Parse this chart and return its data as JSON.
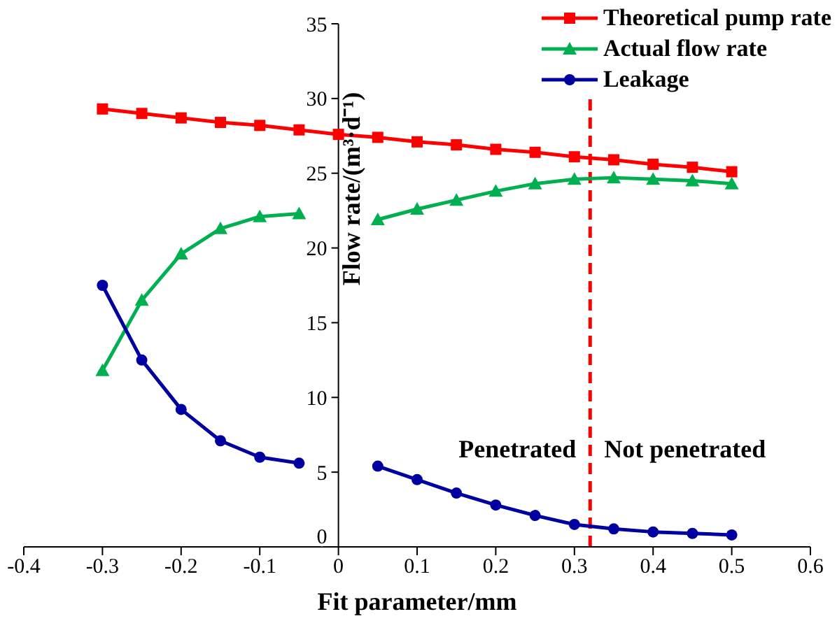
{
  "chart_data": {
    "type": "line",
    "xlabel": "Fit parameter/mm",
    "ylabel": "Flow rate/(m³·d⁻¹)",
    "x": [
      -0.3,
      -0.25,
      -0.2,
      -0.15,
      -0.1,
      -0.05,
      0,
      0.05,
      0.1,
      0.15,
      0.2,
      0.25,
      0.3,
      0.35,
      0.4,
      0.45,
      0.5
    ],
    "series": [
      {
        "name": "Theoretical pump rate",
        "color": "#ff0000",
        "marker": "square",
        "values": [
          29.3,
          29.0,
          28.7,
          28.4,
          28.2,
          27.9,
          27.6,
          27.4,
          27.1,
          26.9,
          26.6,
          26.4,
          26.1,
          25.9,
          25.6,
          25.4,
          25.1
        ]
      },
      {
        "name": "Actual flow rate",
        "color": "#00b050",
        "marker": "triangle",
        "values": [
          11.8,
          16.5,
          19.6,
          21.3,
          22.1,
          22.3,
          null,
          21.9,
          22.6,
          23.2,
          23.8,
          24.3,
          24.6,
          24.7,
          24.6,
          24.5,
          24.3
        ]
      },
      {
        "name": "Leakage",
        "color": "#0000a0",
        "marker": "circle",
        "values": [
          17.5,
          12.5,
          9.2,
          7.1,
          6.0,
          5.6,
          null,
          5.4,
          4.5,
          3.6,
          2.8,
          2.1,
          1.5,
          1.2,
          1.0,
          0.9,
          0.8
        ]
      }
    ],
    "xlim": [
      -0.4,
      0.6
    ],
    "xticks": [
      -0.4,
      -0.3,
      -0.2,
      -0.1,
      0,
      0.1,
      0.2,
      0.3,
      0.4,
      0.5,
      0.6
    ],
    "ylim": [
      0,
      35
    ],
    "yticks": [
      0,
      5,
      10,
      15,
      20,
      25,
      30,
      35
    ],
    "ref_lines": [
      {
        "axis": "x",
        "value": 0.32,
        "color": "#ff0000",
        "line_style": "dashed"
      }
    ],
    "annotations": [
      "Penetrated",
      "Not penetrated"
    ],
    "grid": false,
    "legend": "top right",
    "line_style": "solid"
  }
}
